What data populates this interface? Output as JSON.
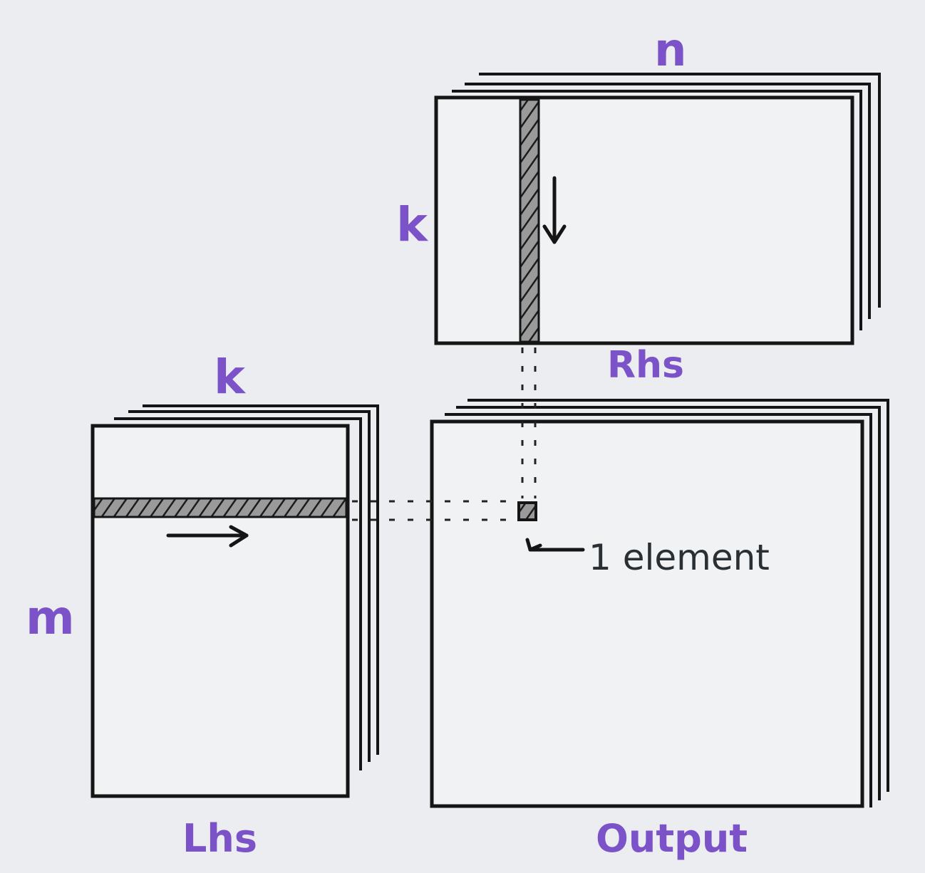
{
  "labels": {
    "rhs_n": "n",
    "rhs_k": "k",
    "rhs_name": "Rhs",
    "lhs_k": "k",
    "lhs_m": "m",
    "lhs_name": "Lhs",
    "output_name": "Output",
    "element_note": "1 element"
  },
  "colors": {
    "label": "#7b52c8",
    "ink": "#151515",
    "paper": "#ecedf0"
  }
}
